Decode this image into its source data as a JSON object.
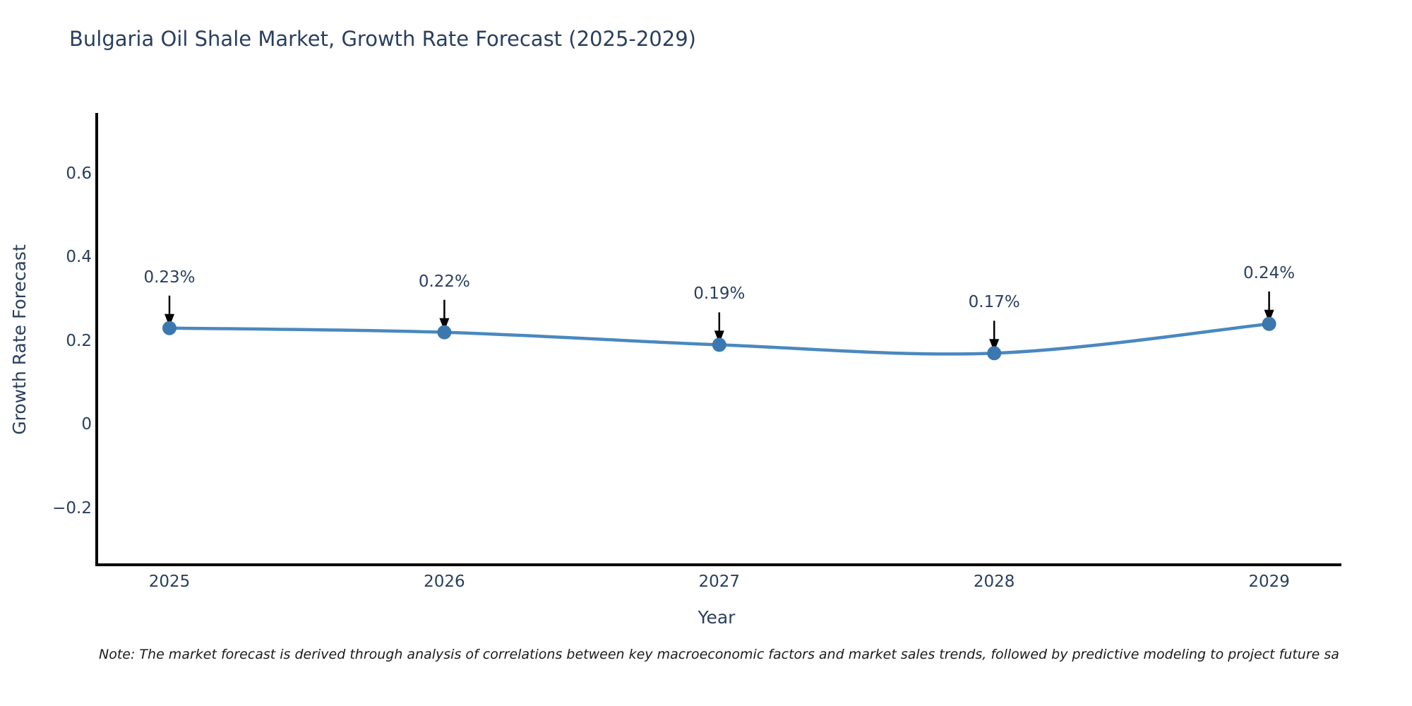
{
  "page": {
    "background": "#ffffff"
  },
  "chart_data": {
    "type": "line",
    "title": "Bulgaria Oil Shale Market, Growth Rate Forecast (2025-2029)",
    "xlabel": "Year",
    "ylabel": "Growth Rate Forecast",
    "categories": [
      "2025",
      "2026",
      "2027",
      "2028",
      "2029"
    ],
    "series": [
      {
        "name": "Growth Rate Forecast",
        "values": [
          0.23,
          0.22,
          0.19,
          0.17,
          0.24
        ]
      }
    ],
    "point_labels": [
      "0.23%",
      "0.22%",
      "0.19%",
      "0.17%",
      "0.24%"
    ],
    "yticks": [
      0.6,
      0.4,
      0.2,
      0,
      -0.2
    ],
    "ytick_labels": [
      "0.6",
      "0.4",
      "0.2",
      "0",
      "−0.2"
    ],
    "ylim": [
      -0.34,
      0.74
    ],
    "grid": false,
    "legend": "none",
    "line_smoothing": "spline",
    "annotation_style": "value label with downward black arrow to marker",
    "colors": {
      "line": "#4a88be",
      "marker": "#3c78b0",
      "axis": "#000000",
      "text": "#2a3f5f",
      "annotation_arrow": "#000000",
      "note_text": "#1a1a1a"
    }
  },
  "note": {
    "text": "Note: The market forecast is derived through analysis of correlations between key macroeconomic factors and market sales trends, followed by predictive modeling to project future sa"
  }
}
